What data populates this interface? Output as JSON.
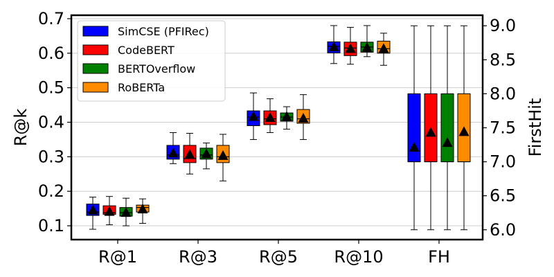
{
  "chart_data": {
    "type": "box",
    "categories": [
      "R@1",
      "R@3",
      "R@5",
      "R@10",
      "FH"
    ],
    "left_axis": {
      "label": "R@k",
      "ylim": [
        0.06,
        0.71
      ],
      "ticks": [
        0.1,
        0.2,
        0.3,
        0.4,
        0.5,
        0.6,
        0.7
      ],
      "tick_labels": [
        "0.1",
        "0.2",
        "0.3",
        "0.4",
        "0.5",
        "0.6",
        "0.7"
      ]
    },
    "right_axis": {
      "label": "FirstHit",
      "ylim": [
        5.855,
        9.155
      ],
      "ticks": [
        6.0,
        6.5,
        7.0,
        7.5,
        8.0,
        8.5,
        9.0
      ],
      "tick_labels": [
        "6.0",
        "6.5",
        "7.0",
        "7.5",
        "8.0",
        "8.5",
        "9.0"
      ]
    },
    "grid": "horizontal",
    "legend_position": "top-left",
    "series": [
      {
        "name": "SimCSE (PFIRec)",
        "color": "#0000ff",
        "boxes": [
          {
            "whisker_low": 0.09,
            "q1": 0.13,
            "median": 0.14,
            "q3": 0.163,
            "whisker_high": 0.183,
            "mean": 0.147
          },
          {
            "whisker_low": 0.28,
            "q1": 0.293,
            "median": 0.305,
            "q3": 0.333,
            "whisker_high": 0.37,
            "mean": 0.312
          },
          {
            "whisker_low": 0.35,
            "q1": 0.39,
            "median": 0.415,
            "q3": 0.433,
            "whisker_high": 0.485,
            "mean": 0.418
          },
          {
            "whisker_low": 0.57,
            "q1": 0.601,
            "median": 0.62,
            "q3": 0.633,
            "whisker_high": 0.68,
            "mean": 0.62
          },
          {
            "whisker_low": 6.0,
            "q1": 7.0,
            "median": 7.0,
            "q3": 8.0,
            "whisker_high": 9.0,
            "mean": 7.22
          }
        ]
      },
      {
        "name": "CodeBERT",
        "color": "#ff0000",
        "boxes": [
          {
            "whisker_low": 0.103,
            "q1": 0.133,
            "median": 0.138,
            "q3": 0.158,
            "whisker_high": 0.185,
            "mean": 0.143
          },
          {
            "whisker_low": 0.25,
            "q1": 0.283,
            "median": 0.295,
            "q3": 0.333,
            "whisker_high": 0.368,
            "mean": 0.308
          },
          {
            "whisker_low": 0.37,
            "q1": 0.393,
            "median": 0.41,
            "q3": 0.433,
            "whisker_high": 0.468,
            "mean": 0.415
          },
          {
            "whisker_low": 0.568,
            "q1": 0.593,
            "median": 0.615,
            "q3": 0.632,
            "whisker_high": 0.675,
            "mean": 0.615
          },
          {
            "whisker_low": 6.0,
            "q1": 7.0,
            "median": 7.0,
            "q3": 8.0,
            "whisker_high": 9.0,
            "mean": 7.44
          }
        ]
      },
      {
        "name": "BERTOverflow",
        "color": "#008000",
        "boxes": [
          {
            "whisker_low": 0.1,
            "q1": 0.128,
            "median": 0.138,
            "q3": 0.153,
            "whisker_high": 0.18,
            "mean": 0.14
          },
          {
            "whisker_low": 0.265,
            "q1": 0.293,
            "median": 0.305,
            "q3": 0.325,
            "whisker_high": 0.34,
            "mean": 0.31
          },
          {
            "whisker_low": 0.38,
            "q1": 0.403,
            "median": 0.415,
            "q3": 0.427,
            "whisker_high": 0.445,
            "mean": 0.418
          },
          {
            "whisker_low": 0.59,
            "q1": 0.603,
            "median": 0.618,
            "q3": 0.632,
            "whisker_high": 0.68,
            "mean": 0.618
          },
          {
            "whisker_low": 6.0,
            "q1": 7.0,
            "median": 7.0,
            "q3": 8.0,
            "whisker_high": 9.0,
            "mean": 7.29
          }
        ]
      },
      {
        "name": "RoBERTa",
        "color": "#ff8c00",
        "boxes": [
          {
            "whisker_low": 0.107,
            "q1": 0.14,
            "median": 0.153,
            "q3": 0.16,
            "whisker_high": 0.178,
            "mean": 0.15
          },
          {
            "whisker_low": 0.23,
            "q1": 0.283,
            "median": 0.3,
            "q3": 0.333,
            "whisker_high": 0.365,
            "mean": 0.305
          },
          {
            "whisker_low": 0.35,
            "q1": 0.397,
            "median": 0.41,
            "q3": 0.437,
            "whisker_high": 0.48,
            "mean": 0.413
          },
          {
            "whisker_low": 0.565,
            "q1": 0.6,
            "median": 0.613,
            "q3": 0.635,
            "whisker_high": 0.658,
            "mean": 0.615
          },
          {
            "whisker_low": 6.0,
            "q1": 7.0,
            "median": 7.0,
            "q3": 8.0,
            "whisker_high": 9.0,
            "mean": 7.45
          }
        ]
      }
    ]
  }
}
